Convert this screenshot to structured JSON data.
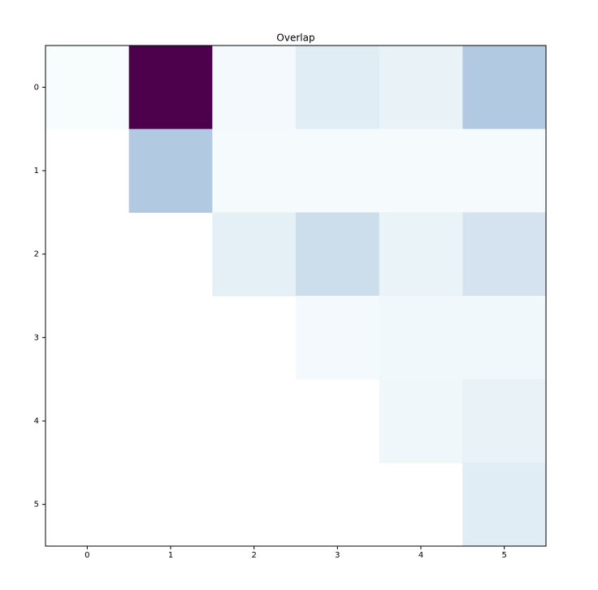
{
  "chart_data": {
    "type": "heatmap",
    "title": "Overlap",
    "columns": [
      0,
      1,
      2,
      3,
      4,
      5
    ],
    "rows": [
      0,
      1,
      2,
      3,
      4,
      5
    ],
    "colormap": "BuPu",
    "vlim": [
      0,
      1
    ],
    "values": [
      [
        0.0,
        1.0,
        0.02,
        0.12,
        0.08,
        0.3
      ],
      [
        null,
        0.3,
        0.01,
        0.01,
        0.01,
        0.01
      ],
      [
        null,
        null,
        0.1,
        0.2,
        0.07,
        0.17
      ],
      [
        null,
        null,
        null,
        0.02,
        0.03,
        0.03
      ],
      [
        null,
        null,
        null,
        null,
        0.04,
        0.08
      ],
      [
        null,
        null,
        null,
        null,
        null,
        0.12
      ]
    ]
  }
}
